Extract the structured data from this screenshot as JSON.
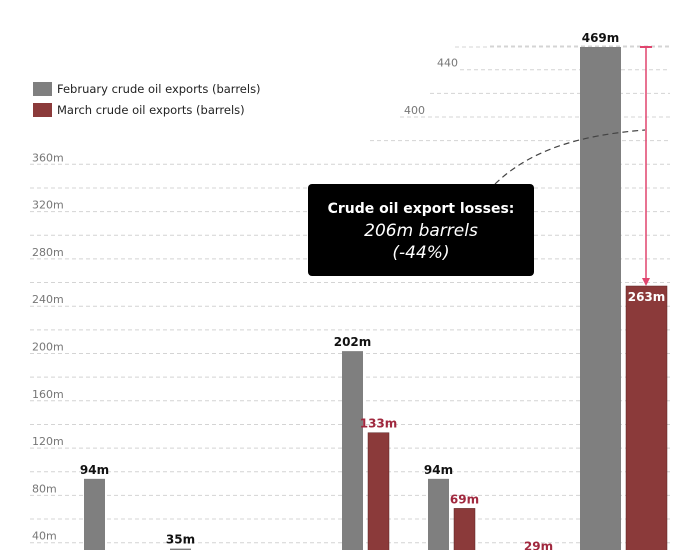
{
  "chart_data": {
    "type": "bar",
    "series": [
      {
        "name": "February crude oil exports (barrels)",
        "color": "#7f7f7f",
        "values": [
          94,
          35,
          null,
          202,
          94,
          null,
          469
        ]
      },
      {
        "name": "March crude oil exports (barrels)",
        "color": "#8b3a3a",
        "values": [
          null,
          null,
          null,
          133,
          69,
          29,
          263
        ]
      }
    ],
    "value_labels": {
      "february": [
        "94m",
        "35m",
        "",
        "202m",
        "94m",
        "",
        "469m"
      ],
      "march": [
        "",
        "",
        "",
        "133m",
        "69m",
        "29m",
        "263m"
      ]
    },
    "y_ticks": [
      "40m",
      "80m",
      "120m",
      "160m",
      "200m",
      "240m",
      "280m",
      "320m",
      "360m",
      "400",
      "440"
    ],
    "y_tick_values": [
      40,
      80,
      120,
      160,
      200,
      240,
      280,
      320,
      360,
      400,
      440
    ],
    "grid": true,
    "legend_position": "top-left",
    "annotation": {
      "title": "Crude oil export losses:",
      "value": "206m barrels",
      "percent": "(-44%)",
      "arrow_color": "#e0456e"
    }
  }
}
